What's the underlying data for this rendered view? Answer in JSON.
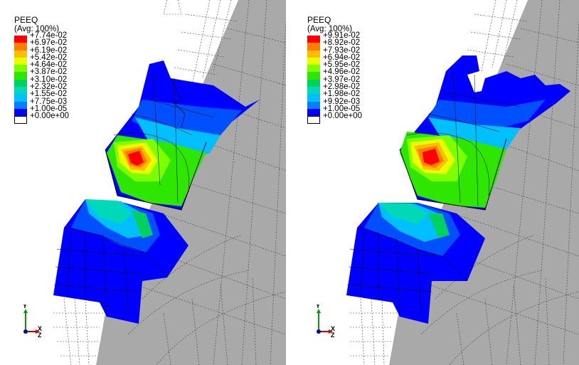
{
  "panels": [
    {
      "legend": {
        "title": "PEEQ",
        "subtitle": "(Avg: 100%)",
        "labels": [
          "+7.74e-02",
          "+6.97e-02",
          "+6.19e-02",
          "+5.42e-02",
          "+4.64e-02",
          "+3.87e-02",
          "+3.10e-02",
          "+2.32e-02",
          "+1.55e-02",
          "+7.75e-03",
          "+1.00e-05",
          "+0.00e+00"
        ]
      },
      "triad": {
        "y": "Y",
        "x": "X",
        "z": "Z"
      }
    },
    {
      "legend": {
        "title": "PEEQ",
        "subtitle": "(Avg: 100%)",
        "labels": [
          "+9.91e-02",
          "+8.92e-02",
          "+7.93e-02",
          "+6.94e-02",
          "+5.95e-02",
          "+4.96e-02",
          "+3.97e-02",
          "+2.98e-02",
          "+1.98e-02",
          "+9.92e-03",
          "+1.00e-05",
          "+0.00e+00"
        ]
      },
      "triad": {
        "y": "Y",
        "x": "X",
        "z": "Z"
      }
    }
  ],
  "colors": {
    "contour": [
      "#ff0000",
      "#ff7d00",
      "#ffbd00",
      "#e8ff00",
      "#7dff00",
      "#2ee600",
      "#00d060",
      "#00d8b8",
      "#00bfff",
      "#0080ff",
      "#0000ff",
      "#ffffff"
    ],
    "mesh_gray": "#a8a8a8",
    "mesh_white": "#ffffff",
    "mesh_line": "#333333"
  }
}
